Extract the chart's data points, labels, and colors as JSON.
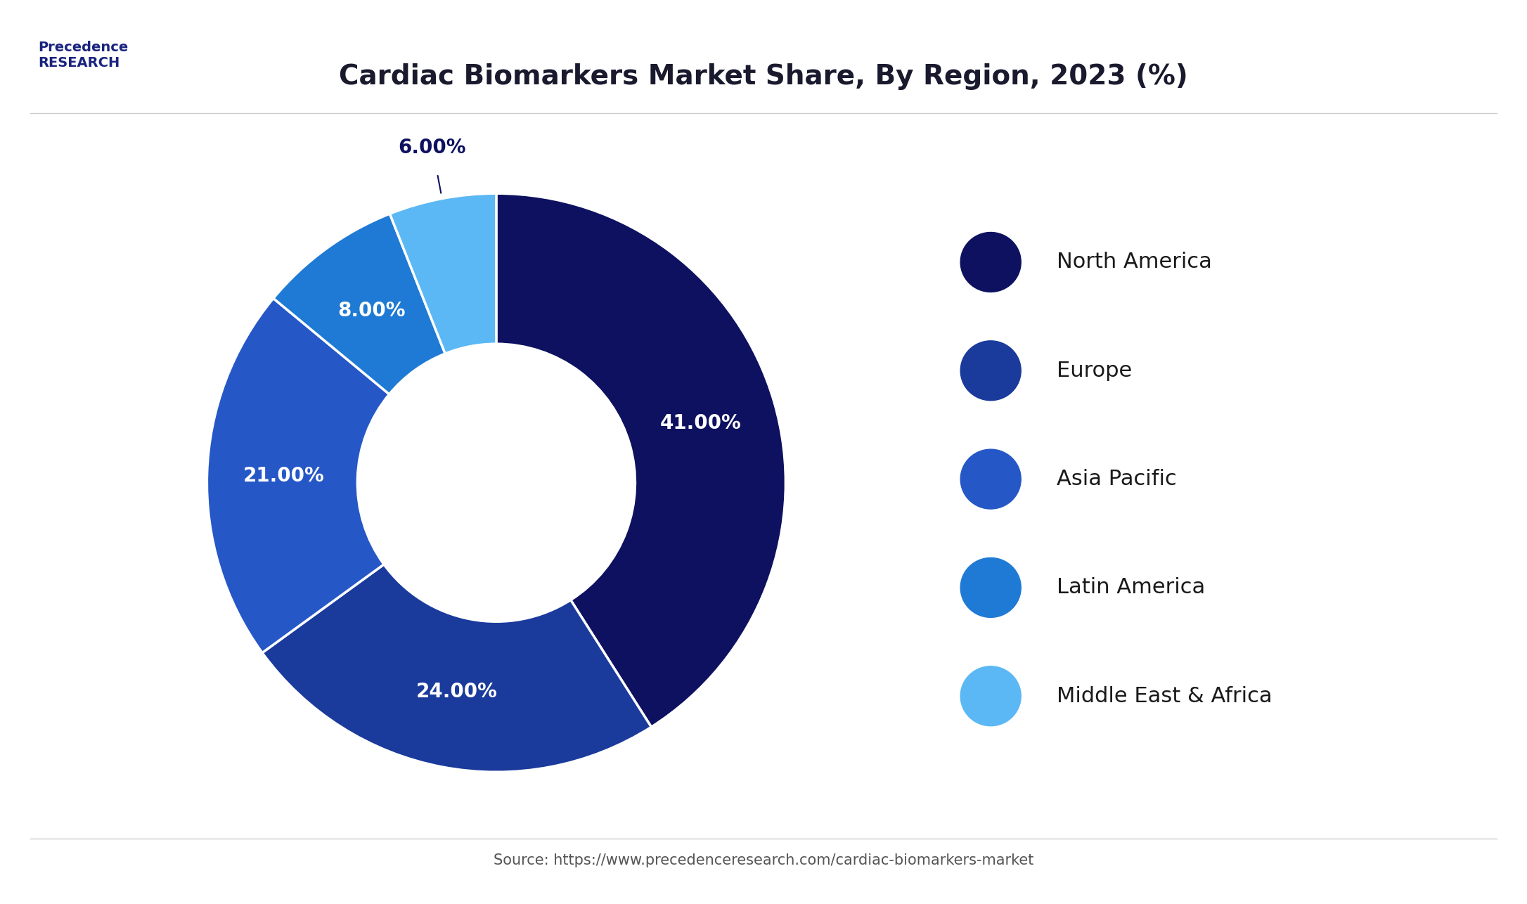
{
  "title": "Cardiac Biomarkers Market Share, By Region, 2023 (%)",
  "values": [
    41.0,
    24.0,
    21.0,
    8.0,
    6.0
  ],
  "labels": [
    "North America",
    "Europe",
    "Asia Pacific",
    "Latin America",
    "Middle East & Africa"
  ],
  "colors": [
    "#0d1160",
    "#1a3a9c",
    "#2557c7",
    "#1e7ad4",
    "#5bb8f5"
  ],
  "pct_labels": [
    "41.00%",
    "24.00%",
    "21.00%",
    "8.00%",
    "6.00%"
  ],
  "background_color": "#ffffff",
  "source_text": "Source: https://www.precedenceresearch.com/cardiac-biomarkers-market",
  "title_fontsize": 28,
  "legend_fontsize": 22
}
